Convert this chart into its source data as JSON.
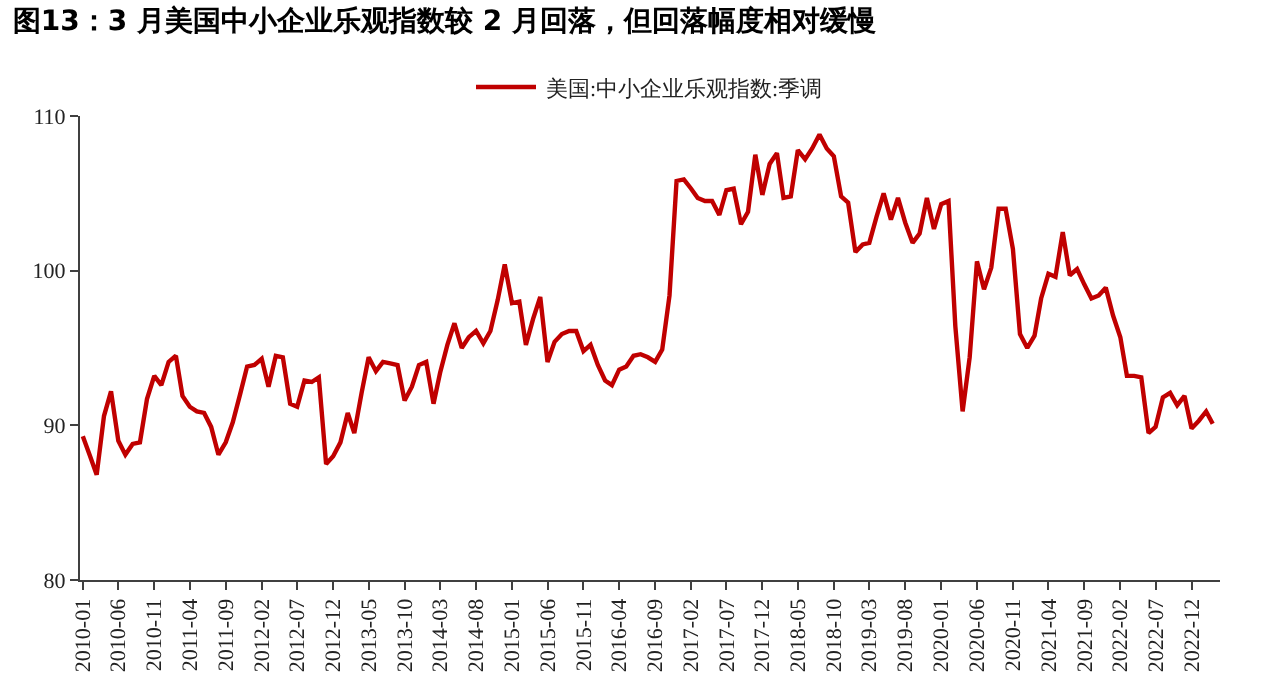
{
  "chart_data": {
    "type": "line",
    "title": "图13：3 月美国中小企业乐观指数较 2 月回落，但回落幅度相对缓慢",
    "x": [
      "2010-01",
      "2010-02",
      "2010-03",
      "2010-04",
      "2010-05",
      "2010-06",
      "2010-07",
      "2010-08",
      "2010-09",
      "2010-10",
      "2010-11",
      "2010-12",
      "2011-01",
      "2011-02",
      "2011-03",
      "2011-04",
      "2011-05",
      "2011-06",
      "2011-07",
      "2011-08",
      "2011-09",
      "2011-10",
      "2011-11",
      "2011-12",
      "2012-01",
      "2012-02",
      "2012-03",
      "2012-04",
      "2012-05",
      "2012-06",
      "2012-07",
      "2012-08",
      "2012-09",
      "2012-10",
      "2012-11",
      "2012-12",
      "2013-01",
      "2013-02",
      "2013-03",
      "2013-04",
      "2013-05",
      "2013-06",
      "2013-07",
      "2013-08",
      "2013-09",
      "2013-10",
      "2013-11",
      "2013-12",
      "2014-01",
      "2014-02",
      "2014-03",
      "2014-04",
      "2014-05",
      "2014-06",
      "2014-07",
      "2014-08",
      "2014-09",
      "2014-10",
      "2014-11",
      "2014-12",
      "2015-01",
      "2015-02",
      "2015-03",
      "2015-04",
      "2015-05",
      "2015-06",
      "2015-07",
      "2015-08",
      "2015-09",
      "2015-10",
      "2015-11",
      "2015-12",
      "2016-01",
      "2016-02",
      "2016-03",
      "2016-04",
      "2016-05",
      "2016-06",
      "2016-07",
      "2016-08",
      "2016-09",
      "2016-10",
      "2016-11",
      "2016-12",
      "2017-01",
      "2017-02",
      "2017-03",
      "2017-04",
      "2017-05",
      "2017-06",
      "2017-07",
      "2017-08",
      "2017-09",
      "2017-10",
      "2017-11",
      "2017-12",
      "2018-01",
      "2018-02",
      "2018-03",
      "2018-04",
      "2018-05",
      "2018-06",
      "2018-07",
      "2018-08",
      "2018-09",
      "2018-10",
      "2018-11",
      "2018-12",
      "2019-01",
      "2019-02",
      "2019-03",
      "2019-04",
      "2019-05",
      "2019-06",
      "2019-07",
      "2019-08",
      "2019-09",
      "2019-10",
      "2019-11",
      "2019-12",
      "2020-01",
      "2020-02",
      "2020-03",
      "2020-04",
      "2020-05",
      "2020-06",
      "2020-07",
      "2020-08",
      "2020-09",
      "2020-10",
      "2020-11",
      "2020-12",
      "2021-01",
      "2021-02",
      "2021-03",
      "2021-04",
      "2021-05",
      "2021-06",
      "2021-07",
      "2021-08",
      "2021-09",
      "2021-10",
      "2021-11",
      "2021-12",
      "2022-01",
      "2022-02",
      "2022-03",
      "2022-04",
      "2022-05",
      "2022-06",
      "2022-07",
      "2022-08",
      "2022-09",
      "2022-10",
      "2022-11",
      "2022-12",
      "2023-01",
      "2023-02",
      "2023-03"
    ],
    "series": [
      {
        "name": "美国:中小企业乐观指数:季调",
        "color": "#c00000",
        "values": [
          89.3,
          88.0,
          86.8,
          90.6,
          92.2,
          89.0,
          88.1,
          88.8,
          88.9,
          91.7,
          93.2,
          92.6,
          94.1,
          94.5,
          91.9,
          91.2,
          90.9,
          90.8,
          89.9,
          88.1,
          88.9,
          90.2,
          92.0,
          93.8,
          93.9,
          94.3,
          92.5,
          94.5,
          94.4,
          91.4,
          91.2,
          92.9,
          92.8,
          93.1,
          87.5,
          88.0,
          88.9,
          90.8,
          89.5,
          92.1,
          94.4,
          93.5,
          94.1,
          94.0,
          93.9,
          91.6,
          92.5,
          93.9,
          94.1,
          91.4,
          93.4,
          95.2,
          96.6,
          95.0,
          95.7,
          96.1,
          95.3,
          96.1,
          98.1,
          100.4,
          97.9,
          98.0,
          95.2,
          96.9,
          98.3,
          94.1,
          95.4,
          95.9,
          96.1,
          96.1,
          94.8,
          95.2,
          93.9,
          92.9,
          92.6,
          93.6,
          93.8,
          94.5,
          94.6,
          94.4,
          94.1,
          94.9,
          98.4,
          105.8,
          105.9,
          105.3,
          104.7,
          104.5,
          104.5,
          103.6,
          105.2,
          105.3,
          103.0,
          103.8,
          107.5,
          104.9,
          106.9,
          107.6,
          104.7,
          104.8,
          107.8,
          107.2,
          107.9,
          108.8,
          107.9,
          107.4,
          104.8,
          104.4,
          101.2,
          101.7,
          101.8,
          103.5,
          105.0,
          103.3,
          104.7,
          103.1,
          101.8,
          102.4,
          104.7,
          102.7,
          104.3,
          104.5,
          96.4,
          90.9,
          94.4,
          100.6,
          98.8,
          100.2,
          104.0,
          104.0,
          101.4,
          95.9,
          95.0,
          95.8,
          98.2,
          99.8,
          99.6,
          102.5,
          99.7,
          100.1,
          99.1,
          98.2,
          98.4,
          98.9,
          97.1,
          95.7,
          93.2,
          93.2,
          93.1,
          89.5,
          89.9,
          91.8,
          92.1,
          91.3,
          91.9,
          89.8,
          90.3,
          90.9,
          90.1
        ]
      }
    ],
    "xlim": [
      "2009-12-20",
      "2023-04"
    ],
    "xticks": [
      "2010-01",
      "2010-06",
      "2010-11",
      "2011-04",
      "2011-09",
      "2012-02",
      "2012-07",
      "2012-12",
      "2013-05",
      "2013-10",
      "2014-03",
      "2014-08",
      "2015-01",
      "2015-06",
      "2015-11",
      "2016-04",
      "2016-09",
      "2017-02",
      "2017-07",
      "2017-12",
      "2018-05",
      "2018-10",
      "2019-03",
      "2019-08",
      "2020-01",
      "2020-06",
      "2020-11",
      "2021-04",
      "2021-09",
      "2022-02",
      "2022-07",
      "2022-12"
    ],
    "ylim": [
      80,
      110
    ],
    "yticks": [
      80,
      90,
      100,
      110
    ],
    "legend": "top",
    "marker": "none",
    "line_style": "solid"
  }
}
